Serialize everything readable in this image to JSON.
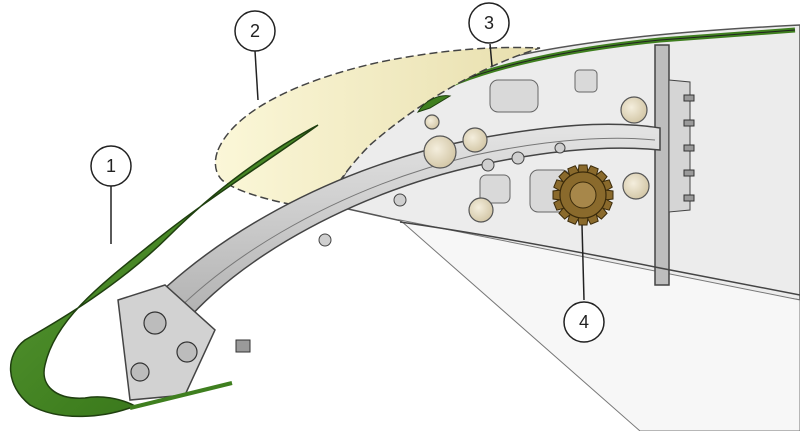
{
  "callouts": [
    {
      "label": "1"
    },
    {
      "label": "2"
    },
    {
      "label": "3"
    },
    {
      "label": "4"
    }
  ],
  "colors": {
    "slat_green": "#3f7f1f",
    "slat_green_light": "#7fbf4f",
    "ghost_fill": "#f3efc4",
    "structure_gray": "#c9c9c9",
    "structure_dark": "#6b6b6b",
    "gear_bronze": "#8a6a2c",
    "bushing_beige": "#e6dcc4"
  }
}
